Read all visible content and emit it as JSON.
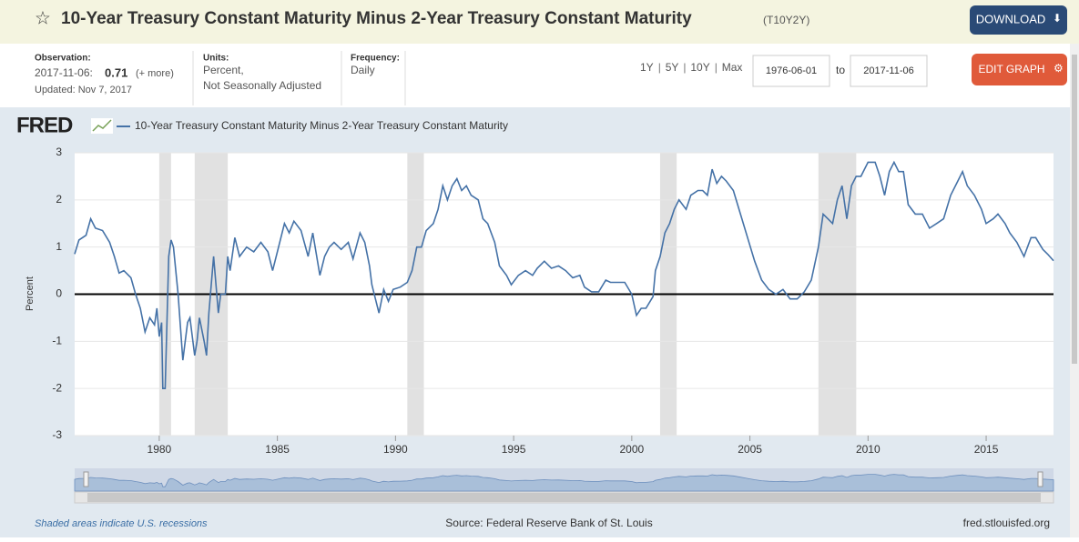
{
  "header": {
    "title": "10-Year Treasury Constant Maturity Minus 2-Year Treasury Constant Maturity",
    "series_id": "(T10Y2Y)",
    "download": "DOWNLOAD"
  },
  "info": {
    "observation_label": "Observation:",
    "observation_date": "2017-11-06:",
    "observation_value": "0.71",
    "more": "(+ more)",
    "updated": "Updated: Nov 7, 2017",
    "units_label": "Units:",
    "units_1": "Percent,",
    "units_2": "Not Seasonally Adjusted",
    "frequency_label": "Frequency:",
    "frequency": "Daily"
  },
  "controls": {
    "ranges": [
      "1Y",
      "5Y",
      "10Y",
      "Max"
    ],
    "separator": "|",
    "start_date": "1976-06-01",
    "to": "to",
    "end_date": "2017-11-06",
    "edit_graph": "EDIT GRAPH"
  },
  "footer": {
    "recession_note": "Shaded areas indicate U.S. recessions",
    "source": "Source: Federal Reserve Bank of St. Louis",
    "site": "fred.stlouisfed.org"
  },
  "chart_data": {
    "type": "line",
    "logo": "FRED",
    "ylabel": "Percent",
    "x": [
      1976.42,
      1976.6,
      1976.9,
      1977.1,
      1977.3,
      1977.6,
      1977.9,
      1978.1,
      1978.3,
      1978.5,
      1978.8,
      1979.0,
      1979.2,
      1979.4,
      1979.6,
      1979.8,
      1979.9,
      1980.0,
      1980.1,
      1980.15,
      1980.25,
      1980.4,
      1980.5,
      1980.6,
      1980.8,
      1980.9,
      1981.0,
      1981.2,
      1981.3,
      1981.5,
      1981.6,
      1981.7,
      1981.9,
      1982.0,
      1982.1,
      1982.3,
      1982.5,
      1982.6,
      1982.8,
      1982.9,
      1983.0,
      1983.2,
      1983.4,
      1983.7,
      1984.0,
      1984.3,
      1984.6,
      1984.8,
      1985.0,
      1985.3,
      1985.5,
      1985.7,
      1986.0,
      1986.3,
      1986.5,
      1986.8,
      1987.0,
      1987.2,
      1987.4,
      1987.7,
      1988.0,
      1988.2,
      1988.5,
      1988.7,
      1988.9,
      1989.0,
      1989.3,
      1989.5,
      1989.7,
      1989.9,
      1990.2,
      1990.5,
      1990.7,
      1990.9,
      1991.1,
      1991.3,
      1991.6,
      1991.8,
      1992.0,
      1992.2,
      1992.4,
      1992.6,
      1992.8,
      1993.0,
      1993.2,
      1993.5,
      1993.7,
      1993.9,
      1994.2,
      1994.4,
      1994.7,
      1994.9,
      1995.2,
      1995.5,
      1995.8,
      1996.0,
      1996.3,
      1996.6,
      1996.9,
      1997.2,
      1997.5,
      1997.8,
      1998.0,
      1998.3,
      1998.6,
      1998.9,
      1999.1,
      1999.4,
      1999.7,
      2000.0,
      2000.2,
      2000.4,
      2000.6,
      2000.9,
      2001.0,
      2001.2,
      2001.4,
      2001.6,
      2001.8,
      2002.0,
      2002.3,
      2002.5,
      2002.8,
      2003.0,
      2003.2,
      2003.4,
      2003.6,
      2003.8,
      2004.0,
      2004.3,
      2004.6,
      2004.9,
      2005.2,
      2005.5,
      2005.8,
      2006.1,
      2006.4,
      2006.7,
      2007.0,
      2007.3,
      2007.6,
      2007.9,
      2008.1,
      2008.3,
      2008.5,
      2008.7,
      2008.9,
      2009.1,
      2009.3,
      2009.5,
      2009.7,
      2010.0,
      2010.3,
      2010.5,
      2010.7,
      2010.9,
      2011.1,
      2011.3,
      2011.5,
      2011.7,
      2012.0,
      2012.3,
      2012.6,
      2012.9,
      2013.2,
      2013.5,
      2013.8,
      2014.0,
      2014.2,
      2014.5,
      2014.8,
      2015.0,
      2015.3,
      2015.5,
      2015.8,
      2016.0,
      2016.3,
      2016.6,
      2016.9,
      2017.1,
      2017.4,
      2017.6,
      2017.85
    ],
    "series": [
      {
        "name": "10-Year Treasury Constant Maturity Minus 2-Year Treasury Constant Maturity",
        "color": "#4572a7",
        "values": [
          0.85,
          1.15,
          1.25,
          1.6,
          1.4,
          1.35,
          1.1,
          0.8,
          0.45,
          0.5,
          0.35,
          0.0,
          -0.3,
          -0.8,
          -0.5,
          -0.65,
          -0.3,
          -0.9,
          -0.6,
          -2.0,
          -2.0,
          0.8,
          1.15,
          1.0,
          0.0,
          -0.7,
          -1.4,
          -0.6,
          -0.5,
          -1.3,
          -1.0,
          -0.5,
          -1.0,
          -1.3,
          -0.4,
          0.8,
          -0.4,
          0.0,
          0.0,
          0.8,
          0.5,
          1.2,
          0.8,
          1.0,
          0.9,
          1.1,
          0.9,
          0.5,
          0.9,
          1.5,
          1.3,
          1.55,
          1.35,
          0.8,
          1.3,
          0.4,
          0.8,
          1.0,
          1.1,
          0.95,
          1.1,
          0.75,
          1.3,
          1.1,
          0.6,
          0.2,
          -0.4,
          0.1,
          -0.15,
          0.1,
          0.15,
          0.25,
          0.5,
          1.0,
          1.0,
          1.35,
          1.5,
          1.8,
          2.3,
          2.0,
          2.3,
          2.45,
          2.2,
          2.3,
          2.1,
          2.0,
          1.6,
          1.5,
          1.1,
          0.6,
          0.4,
          0.2,
          0.4,
          0.5,
          0.4,
          0.55,
          0.7,
          0.55,
          0.6,
          0.5,
          0.35,
          0.4,
          0.15,
          0.05,
          0.05,
          0.3,
          0.25,
          0.25,
          0.25,
          0.0,
          -0.45,
          -0.3,
          -0.3,
          -0.05,
          0.5,
          0.8,
          1.3,
          1.5,
          1.8,
          2.0,
          1.8,
          2.1,
          2.2,
          2.2,
          2.1,
          2.65,
          2.35,
          2.5,
          2.4,
          2.2,
          1.7,
          1.2,
          0.7,
          0.3,
          0.1,
          0.0,
          0.1,
          -0.1,
          -0.1,
          0.05,
          0.3,
          1.0,
          1.7,
          1.6,
          1.5,
          2.0,
          2.3,
          1.6,
          2.3,
          2.5,
          2.5,
          2.8,
          2.8,
          2.5,
          2.1,
          2.6,
          2.8,
          2.6,
          2.6,
          1.9,
          1.7,
          1.7,
          1.4,
          1.5,
          1.6,
          2.1,
          2.4,
          2.6,
          2.3,
          2.1,
          1.8,
          1.5,
          1.6,
          1.7,
          1.5,
          1.3,
          1.1,
          0.8,
          1.2,
          1.2,
          0.95,
          0.85,
          0.71
        ]
      }
    ],
    "recessions": [
      [
        1980.0,
        1980.5
      ],
      [
        1981.5,
        1982.9
      ],
      [
        1990.5,
        1991.2
      ],
      [
        2001.2,
        2001.9
      ],
      [
        2007.9,
        2009.5
      ]
    ],
    "recession_color": "#e1e1e1",
    "xlim": [
      1976.42,
      2017.85
    ],
    "xticks": [
      1980,
      1985,
      1990,
      1995,
      2000,
      2005,
      2010,
      2015
    ],
    "ylim": [
      -3,
      3
    ],
    "yticks": [
      -3,
      -2,
      -1,
      0,
      1,
      2,
      3
    ],
    "grid": true
  }
}
